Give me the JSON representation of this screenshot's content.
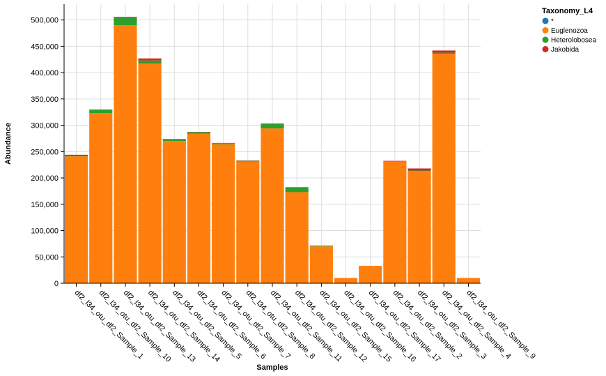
{
  "chart_data": {
    "type": "bar",
    "stacked": true,
    "xlabel": "Samples",
    "ylabel": "Abundance",
    "ylim": [
      0,
      530000
    ],
    "yticks": [
      0,
      50000,
      100000,
      150000,
      200000,
      250000,
      300000,
      350000,
      400000,
      450000,
      500000
    ],
    "ytick_labels": [
      "0",
      "50,000",
      "100,000",
      "150,000",
      "200,000",
      "250,000",
      "300,000",
      "350,000",
      "400,000",
      "450,000",
      "500,000"
    ],
    "grid": true,
    "legend_position": "top-right",
    "legend_title": "Taxonomy_L4",
    "categories": [
      "df2_l34_otu_df2_Sample_1",
      "df2_l34_otu_df2_Sample_10",
      "df2_l34_otu_df2_Sample_13",
      "df2_l34_otu_df2_Sample_14",
      "df2_l34_otu_df2_Sample_5",
      "df2_l34_otu_df2_Sample_6",
      "df2_l34_otu_df2_Sample_7",
      "df2_l34_otu_df2_Sample_8",
      "df2_l34_otu_df2_Sample_11",
      "df2_l34_otu_df2_Sample_12",
      "df2_l34_otu_df2_Sample_15",
      "df2_l34_otu_df2_Sample_16",
      "df2_l34_otu_df2_Sample_17",
      "df2_l34_otu_df2_Sample_2",
      "df2_l34_otu_df2_Sample_3",
      "df2_l34_otu_df2_Sample_4",
      "df2_l34_otu_df2_Sample_9"
    ],
    "series": [
      {
        "name": "*",
        "color": "#1f77b4",
        "values": [
          0,
          0,
          0,
          0,
          0,
          0,
          0,
          0,
          0,
          0,
          0,
          0,
          0,
          0,
          0,
          0,
          0
        ]
      },
      {
        "name": "Euglenozoa",
        "color": "#ff7f0e",
        "values": [
          241000,
          323000,
          490000,
          417000,
          270000,
          284000,
          264000,
          231000,
          294000,
          173000,
          70000,
          10000,
          33000,
          231000,
          213000,
          436000,
          10000
        ]
      },
      {
        "name": "Heterolobosea",
        "color": "#2ca02c",
        "values": [
          1500,
          7000,
          15000,
          6000,
          3500,
          3000,
          2000,
          1500,
          9000,
          9500,
          1500,
          0,
          0,
          1000,
          1000,
          2000,
          0
        ]
      },
      {
        "name": "Jakobida",
        "color": "#d62728",
        "values": [
          1500,
          0,
          1000,
          4000,
          500,
          500,
          500,
          500,
          500,
          0,
          0,
          0,
          0,
          500,
          4000,
          4000,
          0
        ]
      }
    ]
  }
}
